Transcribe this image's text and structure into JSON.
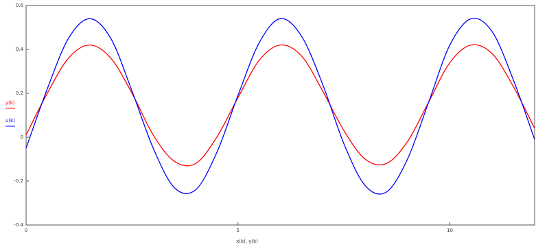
{
  "chart_data": {
    "type": "line",
    "x_label": "x(k), y(k)",
    "x": [
      0,
      0.5,
      1,
      1.5,
      2,
      2.5,
      3,
      3.5,
      4,
      4.5,
      5,
      5.5,
      6,
      6.5,
      7,
      7.5,
      8,
      8.5,
      9,
      9.5,
      10,
      10.5,
      11,
      11.5,
      12
    ],
    "series": [
      {
        "name": "y(k)",
        "color": "#ff0000",
        "values": [
          0.01,
          0.2,
          0.36,
          0.42,
          0.36,
          0.2,
          0.01,
          -0.11,
          -0.12,
          0.0,
          0.18,
          0.35,
          0.42,
          0.37,
          0.21,
          0.03,
          -0.1,
          -0.12,
          -0.02,
          0.16,
          0.34,
          0.42,
          0.38,
          0.23,
          0.04
        ]
      },
      {
        "name": "u(k)",
        "color": "#0000ff",
        "values": [
          -0.05,
          0.22,
          0.45,
          0.54,
          0.45,
          0.21,
          -0.05,
          -0.23,
          -0.24,
          -0.07,
          0.19,
          0.43,
          0.54,
          0.46,
          0.24,
          -0.03,
          -0.22,
          -0.25,
          -0.1,
          0.16,
          0.42,
          0.54,
          0.48,
          0.26,
          -0.01
        ]
      }
    ],
    "xlim": [
      0,
      12
    ],
    "xticks": [
      0,
      5,
      10
    ],
    "ylim": [
      -0.4,
      0.6
    ],
    "yticks": [
      -0.4,
      -0.2,
      0,
      0.2,
      0.4,
      0.6
    ]
  }
}
